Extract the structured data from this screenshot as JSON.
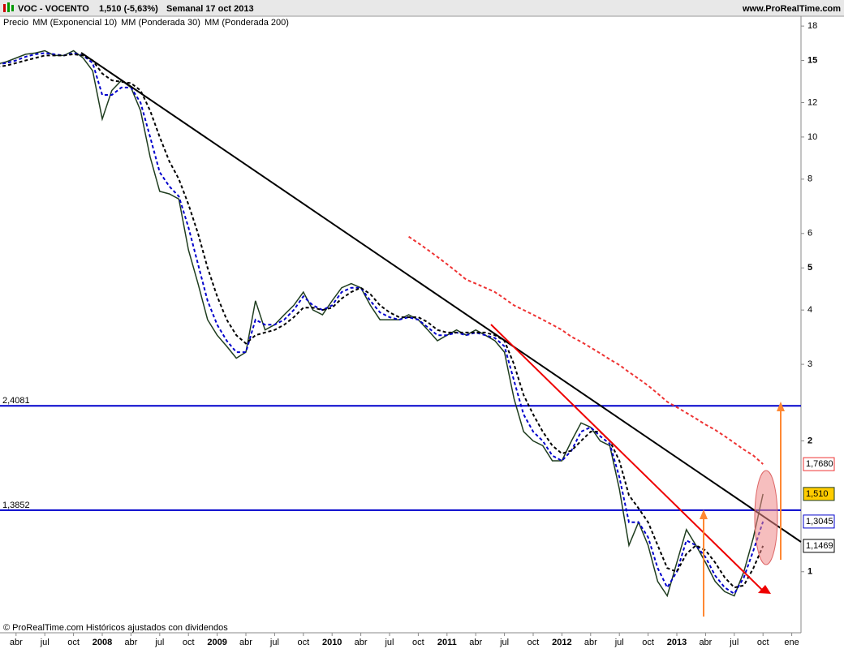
{
  "header": {
    "symbol": "VOC - VOCENTO",
    "quote": "1,510 (-5,63%)",
    "period": "Semanal  17 oct 2013",
    "site": "www.ProRealTime.com"
  },
  "footer": "© ProRealTime.com Históricos ajustados con dividendos",
  "chart_data": {
    "type": "line",
    "log_scale": true,
    "categories": [
      null,
      null,
      "abr",
      null,
      null,
      "jul",
      null,
      null,
      "oct",
      null,
      null,
      "2008",
      null,
      null,
      "abr",
      null,
      null,
      "jul",
      null,
      null,
      "oct",
      null,
      null,
      "2009",
      null,
      null,
      "abr",
      null,
      null,
      "jul",
      null,
      null,
      "oct",
      null,
      null,
      "2010",
      null,
      null,
      "abr",
      null,
      null,
      "jul",
      null,
      null,
      "oct",
      null,
      null,
      "2011",
      null,
      null,
      "abr",
      null,
      null,
      "jul",
      null,
      null,
      "oct",
      null,
      null,
      "2012",
      null,
      null,
      "abr",
      null,
      null,
      "jul",
      null,
      null,
      "oct",
      null,
      null,
      "2013",
      null,
      null,
      "abr",
      null,
      null,
      "jul",
      null,
      null,
      "oct",
      null,
      null,
      "ene"
    ],
    "ylim": [
      0.73,
      18.8
    ],
    "yticks": [
      1,
      2,
      3,
      4,
      5,
      6,
      8,
      10,
      12,
      15,
      18
    ],
    "levels": [
      {
        "value": 2.4081,
        "label": "2,4081"
      },
      {
        "value": 1.3852,
        "label": "1,3852"
      }
    ],
    "series": [
      {
        "name": "Precio",
        "color": "#1f3d1f",
        "last_label": "1,510",
        "values": [
          14.7,
          14.9,
          15.2,
          15.5,
          15.6,
          15.8,
          15.4,
          15.4,
          15.8,
          15.2,
          14.2,
          11,
          12.8,
          13.5,
          13,
          11.5,
          9,
          7.5,
          7.4,
          7.2,
          5.5,
          4.6,
          3.8,
          3.5,
          3.3,
          3.1,
          3.2,
          4.2,
          3.6,
          3.7,
          3.9,
          4.1,
          4.4,
          4.0,
          3.9,
          4.2,
          4.5,
          4.6,
          4.5,
          4.1,
          3.8,
          3.8,
          3.8,
          3.9,
          3.8,
          3.6,
          3.4,
          3.5,
          3.6,
          3.5,
          3.6,
          3.5,
          3.4,
          3.2,
          2.5,
          2.1,
          2.0,
          1.95,
          1.8,
          1.8,
          2.0,
          2.2,
          2.15,
          2.0,
          1.95,
          1.55,
          1.15,
          1.3,
          1.15,
          0.95,
          0.88,
          1.05,
          1.25,
          1.15,
          1.05,
          0.95,
          0.9,
          0.88,
          1.0,
          1.2,
          1.51,
          null,
          null,
          null
        ]
      },
      {
        "name": "MM (Exponencial 10)",
        "color": "#0000cc",
        "dashed": true,
        "last_label": "1,3045",
        "values": [
          14.7,
          14.8,
          15,
          15.3,
          15.5,
          15.6,
          15.5,
          15.4,
          15.6,
          15.4,
          14.8,
          12.5,
          12.5,
          13,
          13,
          12,
          10,
          8.3,
          7.7,
          7.3,
          6.2,
          5.1,
          4.2,
          3.7,
          3.4,
          3.2,
          3.2,
          3.8,
          3.7,
          3.7,
          3.8,
          4.0,
          4.3,
          4.1,
          4.0,
          4.1,
          4.4,
          4.5,
          4.5,
          4.2,
          3.95,
          3.85,
          3.8,
          3.85,
          3.8,
          3.65,
          3.5,
          3.5,
          3.55,
          3.5,
          3.55,
          3.5,
          3.45,
          3.3,
          2.75,
          2.3,
          2.1,
          2.0,
          1.85,
          1.8,
          1.9,
          2.1,
          2.15,
          2.05,
          1.97,
          1.65,
          1.3,
          1.3,
          1.2,
          1.02,
          0.92,
          1.0,
          1.18,
          1.15,
          1.08,
          0.98,
          0.92,
          0.89,
          0.97,
          1.12,
          1.3045,
          null,
          null,
          null
        ]
      },
      {
        "name": "MM (Ponderada 30)",
        "color": "#000000",
        "dashed": true,
        "last_label": "1,1469",
        "values": [
          14.5,
          14.6,
          14.8,
          15,
          15.2,
          15.4,
          15.4,
          15.4,
          15.5,
          15.4,
          15,
          14,
          13.5,
          13.4,
          13.3,
          12.8,
          11.5,
          10,
          8.8,
          8.0,
          7.0,
          6.0,
          5.0,
          4.3,
          3.8,
          3.5,
          3.35,
          3.5,
          3.55,
          3.6,
          3.7,
          3.85,
          4.05,
          4.05,
          4.0,
          4.05,
          4.25,
          4.4,
          4.5,
          4.35,
          4.1,
          3.95,
          3.85,
          3.85,
          3.85,
          3.75,
          3.6,
          3.55,
          3.55,
          3.55,
          3.55,
          3.55,
          3.5,
          3.4,
          3.0,
          2.55,
          2.3,
          2.1,
          1.95,
          1.87,
          1.9,
          2.0,
          2.1,
          2.1,
          2.0,
          1.8,
          1.5,
          1.4,
          1.3,
          1.15,
          1.02,
          1.0,
          1.1,
          1.15,
          1.12,
          1.05,
          0.97,
          0.92,
          0.93,
          1.02,
          1.1469,
          null,
          null,
          null
        ]
      },
      {
        "name": "MM (Ponderada 200)",
        "color": "#ee3333",
        "dashed": true,
        "last_label": "1,7680",
        "values": [
          null,
          null,
          null,
          null,
          null,
          null,
          null,
          null,
          null,
          null,
          null,
          null,
          null,
          null,
          null,
          null,
          null,
          null,
          null,
          null,
          null,
          null,
          null,
          null,
          null,
          null,
          null,
          null,
          null,
          null,
          null,
          null,
          null,
          null,
          null,
          null,
          null,
          null,
          null,
          null,
          null,
          null,
          null,
          5.9,
          5.7,
          5.5,
          5.3,
          5.1,
          4.9,
          4.7,
          4.6,
          4.5,
          4.4,
          4.25,
          4.1,
          4.0,
          3.9,
          3.8,
          3.7,
          3.6,
          3.47,
          3.38,
          3.28,
          3.18,
          3.08,
          2.99,
          2.88,
          2.78,
          2.68,
          2.57,
          2.46,
          2.39,
          2.32,
          2.25,
          2.18,
          2.12,
          2.05,
          1.98,
          1.91,
          1.85,
          1.768,
          null,
          null,
          null
        ]
      }
    ]
  }
}
